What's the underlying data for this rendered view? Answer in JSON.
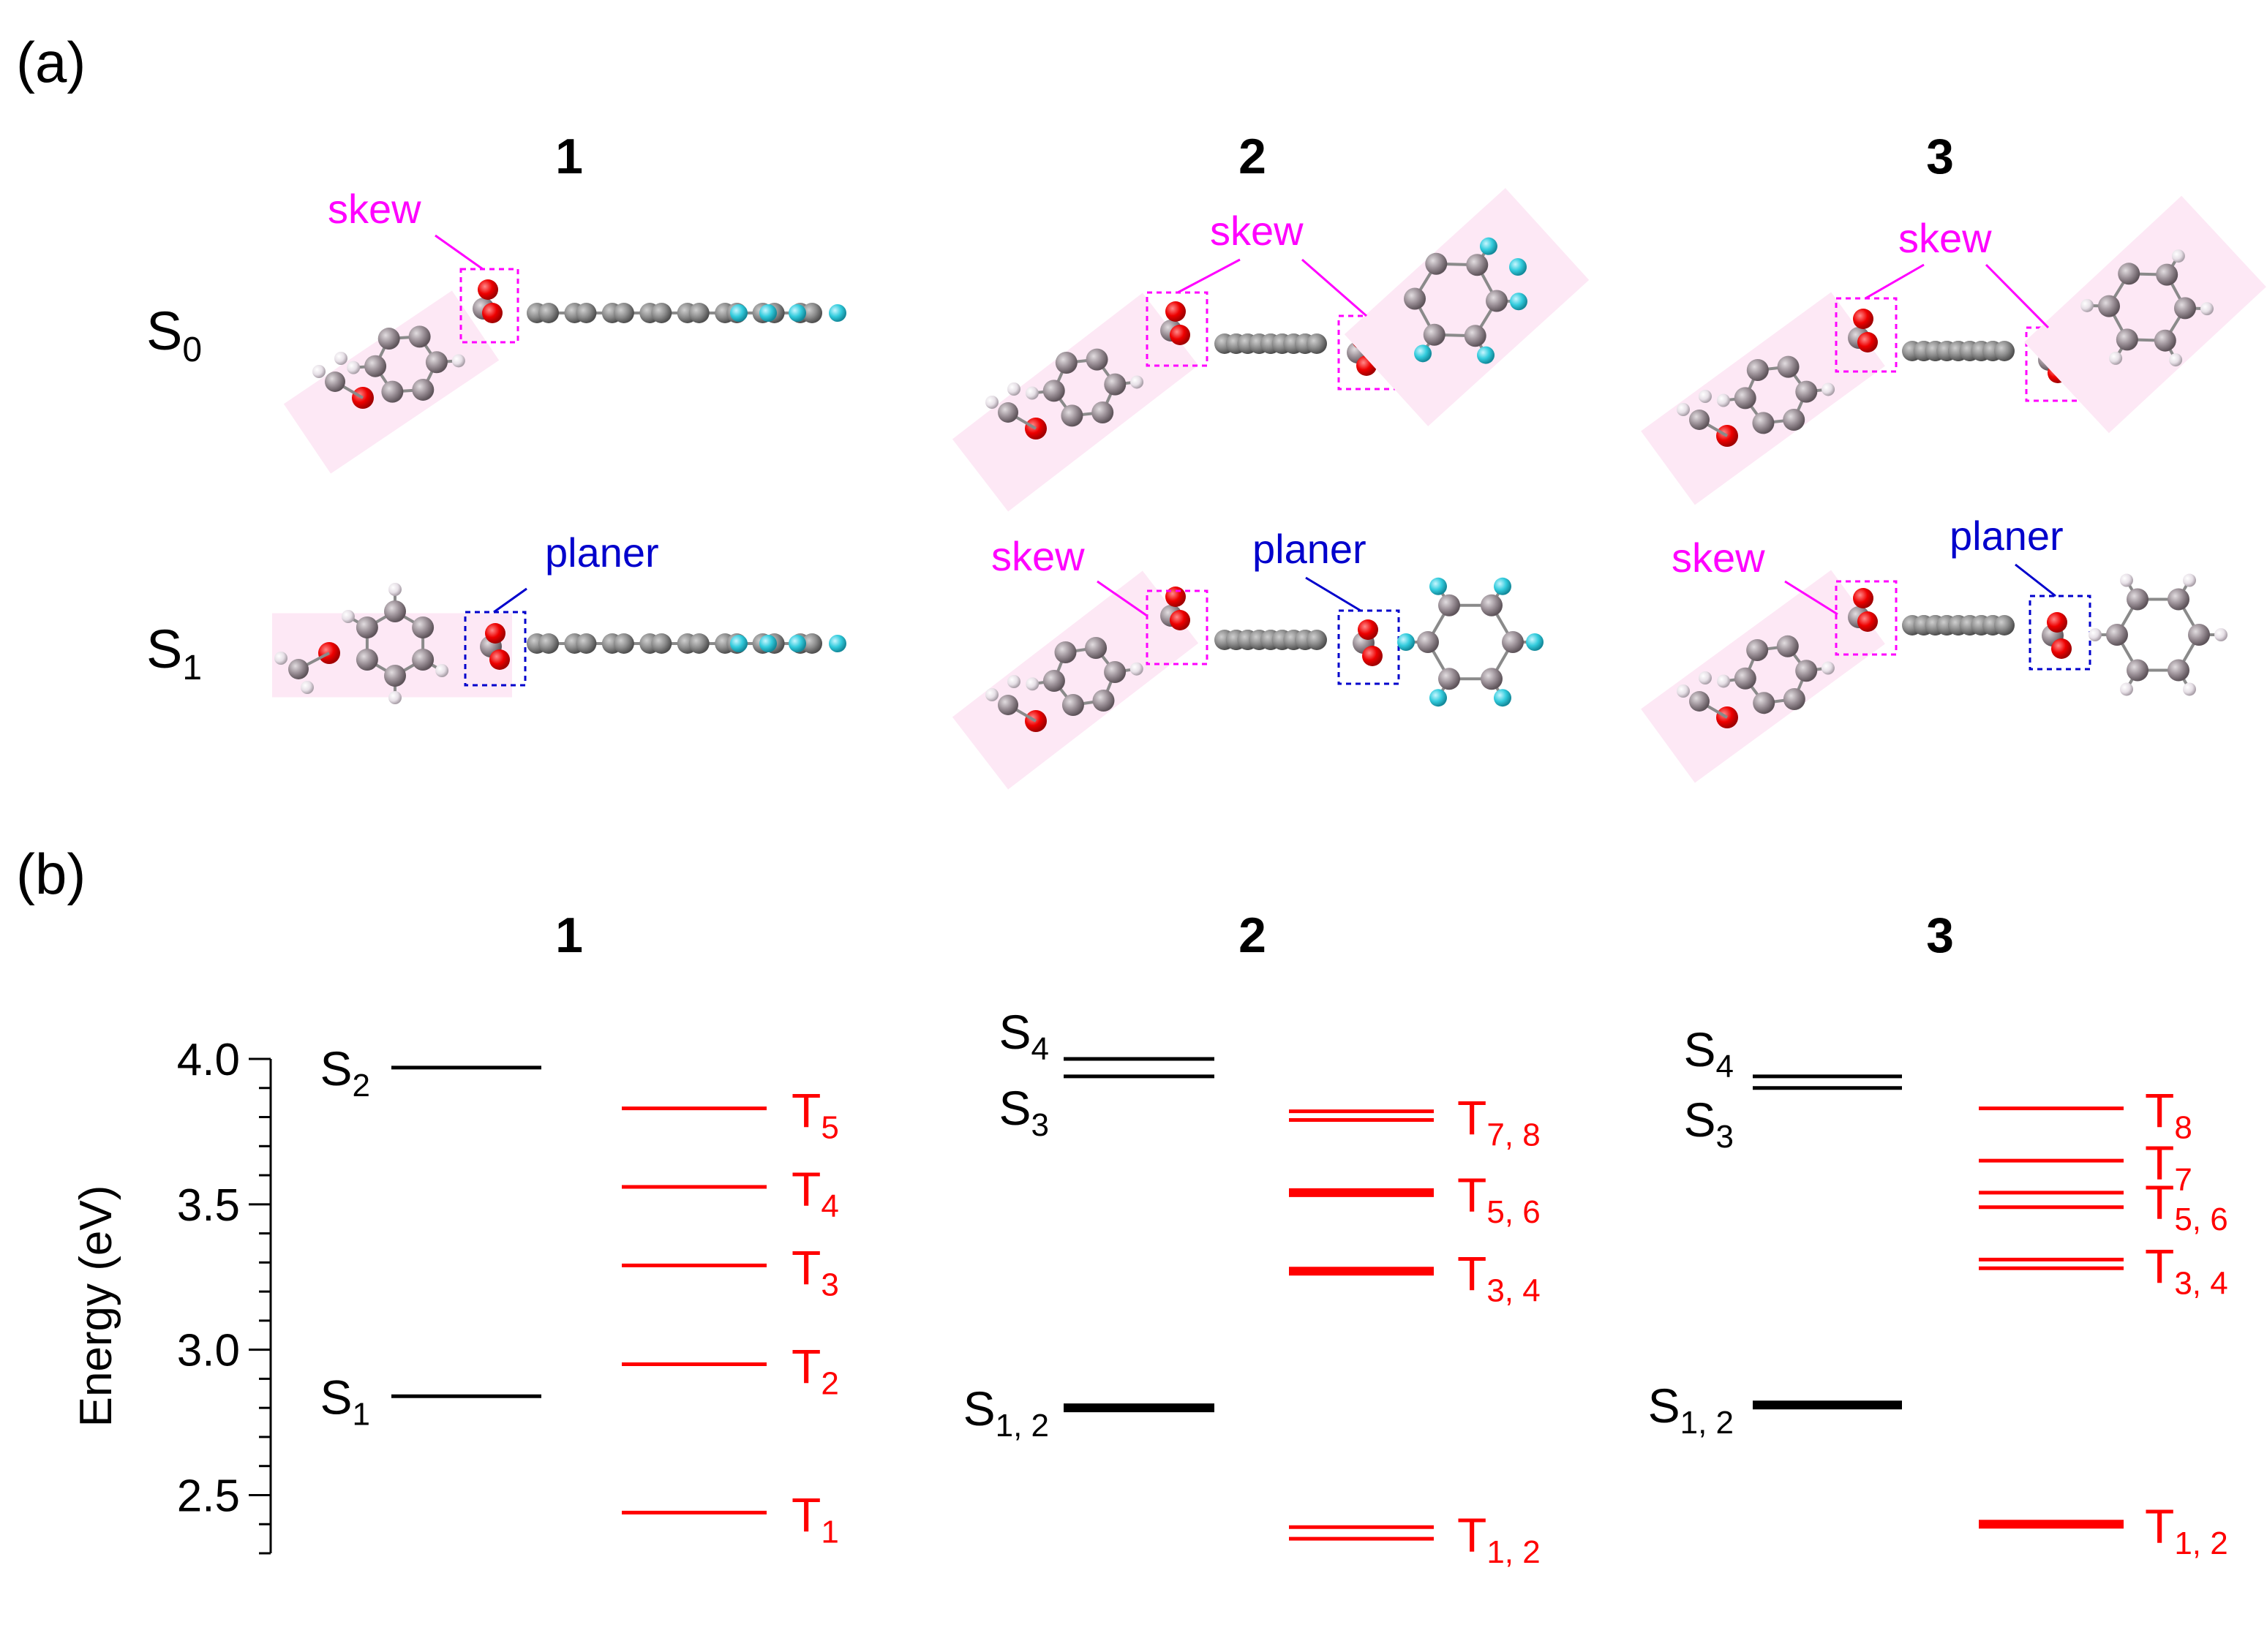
{
  "panel_a": {
    "label": "(a)",
    "columns": [
      "1",
      "2",
      "3"
    ],
    "rows": [
      {
        "name": "S",
        "sub": "0"
      },
      {
        "name": "S",
        "sub": "1"
      }
    ],
    "annotations": {
      "skew": "skew",
      "planer": "planer"
    },
    "colors": {
      "skew": "#ff00ff",
      "planer": "#0000cc",
      "oxygen": "#e8000b",
      "carbon": "#9a8f96",
      "fluorine": "#33ccdd",
      "hydrogen": "#e6dfe6",
      "highlight": "#fde8f5"
    }
  },
  "panel_b": {
    "label": "(b)",
    "columns": [
      "1",
      "2",
      "3"
    ],
    "ylabel": "Energy (eV)",
    "yticks": [
      "4.0",
      "3.5",
      "3.0",
      "2.5"
    ],
    "colors": {
      "singlet": "#000000",
      "triplet": "#ff0000"
    }
  },
  "chart_data": {
    "type": "energy-level diagram",
    "ylabel": "Energy (eV)",
    "ylim": [
      2.3,
      4.0
    ],
    "yticks": [
      2.5,
      3.0,
      3.5,
      4.0
    ],
    "compounds": [
      {
        "name": "1",
        "singlets": [
          {
            "label": "S",
            "sub": "2",
            "energies": [
              3.97
            ]
          },
          {
            "label": "S",
            "sub": "1",
            "energies": [
              2.84
            ]
          }
        ],
        "triplets": [
          {
            "label": "T",
            "sub": "5",
            "energies": [
              3.83
            ]
          },
          {
            "label": "T",
            "sub": "4",
            "energies": [
              3.56
            ]
          },
          {
            "label": "T",
            "sub": "3",
            "energies": [
              3.29
            ]
          },
          {
            "label": "T",
            "sub": "2",
            "energies": [
              2.95
            ]
          },
          {
            "label": "T",
            "sub": "1",
            "energies": [
              2.44
            ]
          }
        ]
      },
      {
        "name": "2",
        "singlets": [
          {
            "label": "S",
            "sub": "4",
            "energies": [
              4.0
            ]
          },
          {
            "label": "S",
            "sub": "3",
            "energies": [
              3.94
            ]
          },
          {
            "label": "S",
            "sub": "1, 2",
            "energies": [
              2.8
            ]
          }
        ],
        "triplets": [
          {
            "label": "T",
            "sub": "7, 8",
            "energies": [
              3.82,
              3.79
            ]
          },
          {
            "label": "T",
            "sub": "5, 6",
            "energies": [
              3.55,
              3.53
            ]
          },
          {
            "label": "T",
            "sub": "3, 4",
            "energies": [
              3.28,
              3.26
            ]
          },
          {
            "label": "T",
            "sub": "1, 2",
            "energies": [
              2.39,
              2.35
            ]
          }
        ]
      },
      {
        "name": "3",
        "singlets": [
          {
            "label": "S",
            "sub": "4",
            "energies": [
              3.94
            ]
          },
          {
            "label": "S",
            "sub": "3",
            "energies": [
              3.9
            ]
          },
          {
            "label": "S",
            "sub": "1, 2",
            "energies": [
              2.81
            ]
          }
        ],
        "triplets": [
          {
            "label": "T",
            "sub": "8",
            "energies": [
              3.83
            ]
          },
          {
            "label": "T",
            "sub": "7",
            "energies": [
              3.65
            ]
          },
          {
            "label": "T",
            "sub": "5, 6",
            "energies": [
              3.54,
              3.49
            ]
          },
          {
            "label": "T",
            "sub": "3, 4",
            "energies": [
              3.31,
              3.28
            ]
          },
          {
            "label": "T",
            "sub": "1, 2",
            "energies": [
              2.41,
              2.39
            ]
          }
        ]
      }
    ]
  }
}
